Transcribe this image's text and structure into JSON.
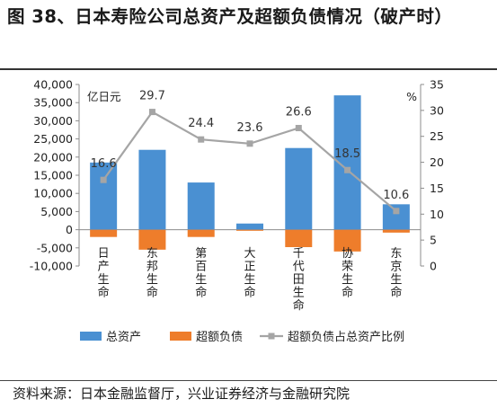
{
  "header": {
    "title": "图 38、日本寿险公司总资产及超额负债情况（破产时）"
  },
  "footer": {
    "source": "资料来源：日本金融监督厅，兴业证券经济与金融研究院"
  },
  "chart_data": {
    "type": "bar",
    "categories": [
      "日产生命",
      "东邦生命",
      "第百生命",
      "大正生命",
      "千代田生命",
      "协荣生命",
      "东京生命"
    ],
    "series": [
      {
        "name": "总资产",
        "axis": "left",
        "color": "#4a90d2",
        "values": [
          18500,
          22000,
          13000,
          1700,
          22500,
          37000,
          7000
        ]
      },
      {
        "name": "超额负债",
        "axis": "left",
        "color": "#ee7d2b",
        "values": [
          -2000,
          -5500,
          -2000,
          -300,
          -4800,
          -6000,
          -800
        ]
      },
      {
        "name": "超额负债占总资产比例",
        "axis": "right",
        "color": "#a5a5a5",
        "values": [
          16.6,
          29.7,
          24.4,
          23.6,
          26.6,
          18.5,
          10.6
        ]
      }
    ],
    "y_left": {
      "label": "亿日元",
      "min": -10000,
      "max": 40000,
      "step": 5000,
      "ticks": [
        "-10,000",
        "-5,000",
        "0",
        "5,000",
        "10,000",
        "15,000",
        "20,000",
        "25,000",
        "30,000",
        "35,000",
        "40,000"
      ]
    },
    "y_right": {
      "label": "%",
      "min": 0,
      "max": 35,
      "step": 5,
      "ticks": [
        "0",
        "5",
        "10",
        "15",
        "20",
        "25",
        "30",
        "35"
      ]
    },
    "data_labels": [
      "16.6",
      "29.7",
      "24.4",
      "23.6",
      "26.6",
      "18.5",
      "10.6"
    ],
    "legend": {
      "position": "bottom",
      "items": [
        "总资产",
        "超额负债",
        "超额负债占总资产比例"
      ]
    },
    "grid": false
  }
}
